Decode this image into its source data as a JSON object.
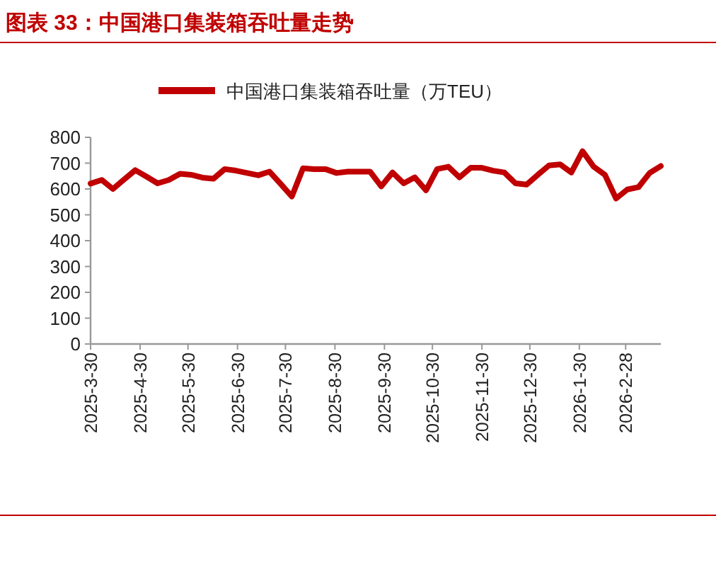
{
  "chart_data": {
    "type": "line",
    "title": "图表 33：中国港口集装箱吞吐量走势",
    "x": [
      "2025-03-30",
      "2025-04-06",
      "2025-04-13",
      "2025-04-20",
      "2025-04-27",
      "2025-05-04",
      "2025-05-11",
      "2025-05-18",
      "2025-05-25",
      "2025-06-01",
      "2025-06-08",
      "2025-06-15",
      "2025-06-22",
      "2025-06-29",
      "2025-07-06",
      "2025-07-13",
      "2025-07-20",
      "2025-07-27",
      "2025-08-03",
      "2025-08-10",
      "2025-08-17",
      "2025-08-24",
      "2025-08-31",
      "2025-09-07",
      "2025-09-14",
      "2025-09-21",
      "2025-09-28",
      "2025-10-05",
      "2025-10-12",
      "2025-10-19",
      "2025-10-26",
      "2025-11-02",
      "2025-11-09",
      "2025-11-16",
      "2025-11-23",
      "2025-11-30",
      "2025-12-07",
      "2025-12-14",
      "2025-12-21",
      "2025-12-28",
      "2026-01-04",
      "2026-01-11",
      "2026-01-18",
      "2026-01-25",
      "2026-02-01",
      "2026-02-08",
      "2026-02-15",
      "2026-02-22",
      "2026-03-01",
      "2026-03-08",
      "2026-03-15",
      "2026-03-22"
    ],
    "series": [
      {
        "name": "中国港口集装箱吞吐量（万TEU）",
        "color": "#c00000",
        "values": [
          621,
          635,
          600,
          637,
          673,
          648,
          622,
          635,
          659,
          655,
          644,
          640,
          677,
          671,
          662,
          653,
          667,
          620,
          571,
          680,
          677,
          677,
          662,
          667,
          667,
          667,
          610,
          664,
          622,
          645,
          595,
          677,
          686,
          645,
          682,
          682,
          671,
          664,
          622,
          617,
          655,
          691,
          695,
          664,
          746,
          686,
          655,
          563,
          598,
          607,
          662,
          689
        ]
      }
    ],
    "xlim": [
      "2025-03-30",
      "2026-03-22"
    ],
    "xticks": [
      {
        "value": "2025-03-30",
        "label": "2025-3-30"
      },
      {
        "value": "2025-04-30",
        "label": "2025-4-30"
      },
      {
        "value": "2025-05-30",
        "label": "2025-5-30"
      },
      {
        "value": "2025-06-30",
        "label": "2025-6-30"
      },
      {
        "value": "2025-07-30",
        "label": "2025-7-30"
      },
      {
        "value": "2025-08-30",
        "label": "2025-8-30"
      },
      {
        "value": "2025-09-30",
        "label": "2025-9-30"
      },
      {
        "value": "2025-10-30",
        "label": "2025-10-30"
      },
      {
        "value": "2025-11-30",
        "label": "2025-11-30"
      },
      {
        "value": "2025-12-30",
        "label": "2025-12-30"
      },
      {
        "value": "2026-01-30",
        "label": "2026-1-30"
      },
      {
        "value": "2026-02-28",
        "label": "2026-2-28"
      }
    ],
    "ylim": [
      0,
      800
    ],
    "yticks": [
      0,
      100,
      200,
      300,
      400,
      500,
      600,
      700,
      800
    ],
    "legend": "top",
    "grid": false,
    "marker": "none",
    "line_style": "solid"
  }
}
